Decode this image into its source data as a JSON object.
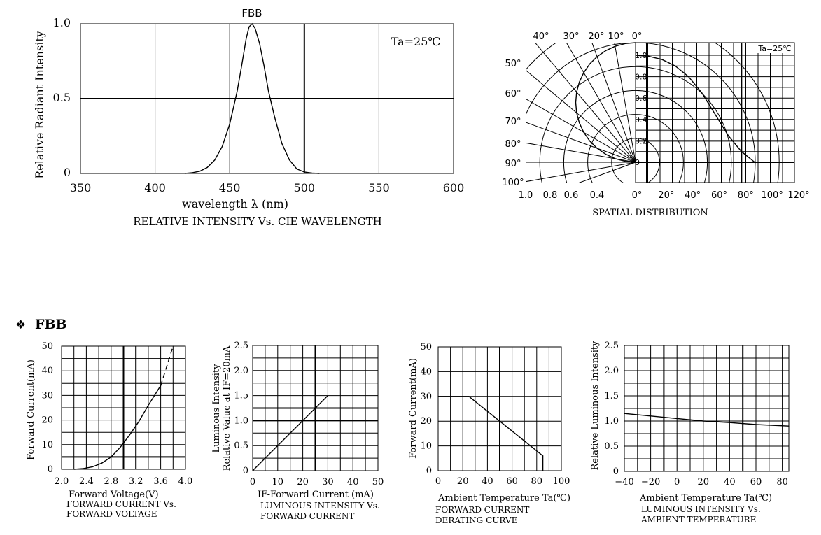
{
  "section_heading": "FBB",
  "section_bullet": "❖",
  "chart_data": [
    {
      "id": "spectrum",
      "type": "line",
      "top_label": "FBB",
      "title": "RELATIVE INTENSITY Vs. CIE WAVELENGTH",
      "xlabel": "wavelength λ (nm)",
      "ylabel": "Relative Radiant Intensity",
      "annotation": "Ta=25℃",
      "xlim": [
        350,
        600
      ],
      "ylim": [
        0,
        1.0
      ],
      "xticks": [
        "350",
        "400",
        "450",
        "500",
        "550",
        "600"
      ],
      "yticks": [
        "0",
        "0.5",
        "1.0"
      ],
      "grid": true,
      "series": [
        {
          "x": [
            420,
            425,
            430,
            435,
            440,
            445,
            450,
            455,
            458,
            461,
            463,
            465,
            467,
            470,
            473,
            476,
            480,
            485,
            490,
            495,
            500,
            505,
            510
          ],
          "y": [
            0.0,
            0.005,
            0.015,
            0.04,
            0.09,
            0.18,
            0.33,
            0.55,
            0.72,
            0.9,
            0.98,
            1.0,
            0.97,
            0.87,
            0.72,
            0.55,
            0.38,
            0.2,
            0.09,
            0.03,
            0.01,
            0.003,
            0.0
          ]
        }
      ]
    },
    {
      "id": "spatial",
      "type": "line",
      "title": "SPATIAL DISTRIBUTION",
      "annotation": "Ta=25℃",
      "polar_angle_labels": [
        "40°",
        "30°",
        "20°",
        "10°",
        "0°",
        "50°",
        "60°",
        "70°",
        "80°",
        "90°",
        "100°"
      ],
      "polar_radius_labels": [
        "1.0",
        "0.8",
        "0.6",
        "0.4",
        "0°"
      ],
      "y_axis_labels": [
        "1.0",
        "0.8",
        "0.6",
        "0.4",
        "0.2",
        "0"
      ],
      "x_axis_labels": [
        "20°",
        "40°",
        "60°",
        "80°",
        "100°",
        "120°"
      ],
      "series": [
        {
          "x": [
            0,
            10,
            20,
            30,
            40,
            50,
            60,
            70,
            80,
            90
          ],
          "y": [
            1.0,
            0.99,
            0.96,
            0.9,
            0.8,
            0.65,
            0.45,
            0.25,
            0.1,
            0.0
          ]
        }
      ]
    },
    {
      "id": "iv",
      "type": "line",
      "title_lines": [
        "FORWARD CURRENT Vs.",
        "FORWARD VOLTAGE"
      ],
      "xlabel": "Forward Voltage(V)",
      "ylabel": "Forward Current(mA)",
      "xlim": [
        2.0,
        4.0
      ],
      "ylim": [
        0,
        50
      ],
      "xticks": [
        "2.0",
        "2.4",
        "2.8",
        "3.2",
        "3.6",
        "4.0"
      ],
      "yticks": [
        "0",
        "10",
        "20",
        "30",
        "40",
        "50"
      ],
      "series": [
        {
          "x": [
            2.2,
            2.35,
            2.5,
            2.65,
            2.8,
            2.95,
            3.1,
            3.25,
            3.4,
            3.5,
            3.6
          ],
          "y": [
            0,
            0.3,
            1,
            2.5,
            5,
            9,
            14,
            19.5,
            26,
            30,
            34
          ]
        },
        {
          "x": [
            3.6,
            3.7,
            3.8
          ],
          "y": [
            34,
            42,
            50
          ],
          "style": "dashed"
        }
      ]
    },
    {
      "id": "lum_if",
      "type": "line",
      "title_lines": [
        "LUMINOUS INTENSITY Vs.",
        "FORWARD CURRENT"
      ],
      "xlabel": "IF-Forward Current (mA)",
      "ylabel_lines": [
        "Luminous Intensity",
        "Relative Value at IF=20mA"
      ],
      "xlim": [
        0,
        50
      ],
      "ylim": [
        0,
        2.5
      ],
      "xticks": [
        "0",
        "10",
        "20",
        "30",
        "40",
        "50"
      ],
      "yticks": [
        "0",
        "0.5",
        "1.0",
        "1.5",
        "2.0",
        "2.5"
      ],
      "series": [
        {
          "x": [
            0,
            30
          ],
          "y": [
            0,
            1.5
          ]
        }
      ]
    },
    {
      "id": "derating",
      "type": "line",
      "title_lines": [
        "FORWARD CURRENT",
        "DERATING CURVE"
      ],
      "xlabel": "Ambient Temperature Ta(℃)",
      "ylabel": "Forward Current(mA)",
      "xlim": [
        0,
        100
      ],
      "ylim": [
        0,
        50
      ],
      "xticks": [
        "0",
        "20",
        "40",
        "60",
        "80",
        "100"
      ],
      "yticks": [
        "0",
        "10",
        "20",
        "30",
        "40",
        "50"
      ],
      "series": [
        {
          "x": [
            0,
            25,
            85,
            85
          ],
          "y": [
            30,
            30,
            6,
            0
          ]
        }
      ]
    },
    {
      "id": "lum_temp",
      "type": "line",
      "title_lines": [
        "LUMINOUS INTENSITY Vs.",
        "AMBIENT TEMPERATURE"
      ],
      "xlabel": "Ambient Temperature Ta(℃)",
      "ylabel": "Relative Luminous Intensity",
      "xlim": [
        -40,
        85
      ],
      "ylim": [
        0,
        2.5
      ],
      "xticks": [
        "−40",
        "−20",
        "0",
        "20",
        "40",
        "60",
        "80"
      ],
      "yticks": [
        "0",
        "0.5",
        "1.0",
        "1.5",
        "2.0",
        "2.5"
      ],
      "series": [
        {
          "x": [
            -40,
            -20,
            0,
            20,
            40,
            60,
            85
          ],
          "y": [
            1.15,
            1.1,
            1.05,
            1.0,
            0.97,
            0.93,
            0.9
          ]
        }
      ]
    }
  ]
}
